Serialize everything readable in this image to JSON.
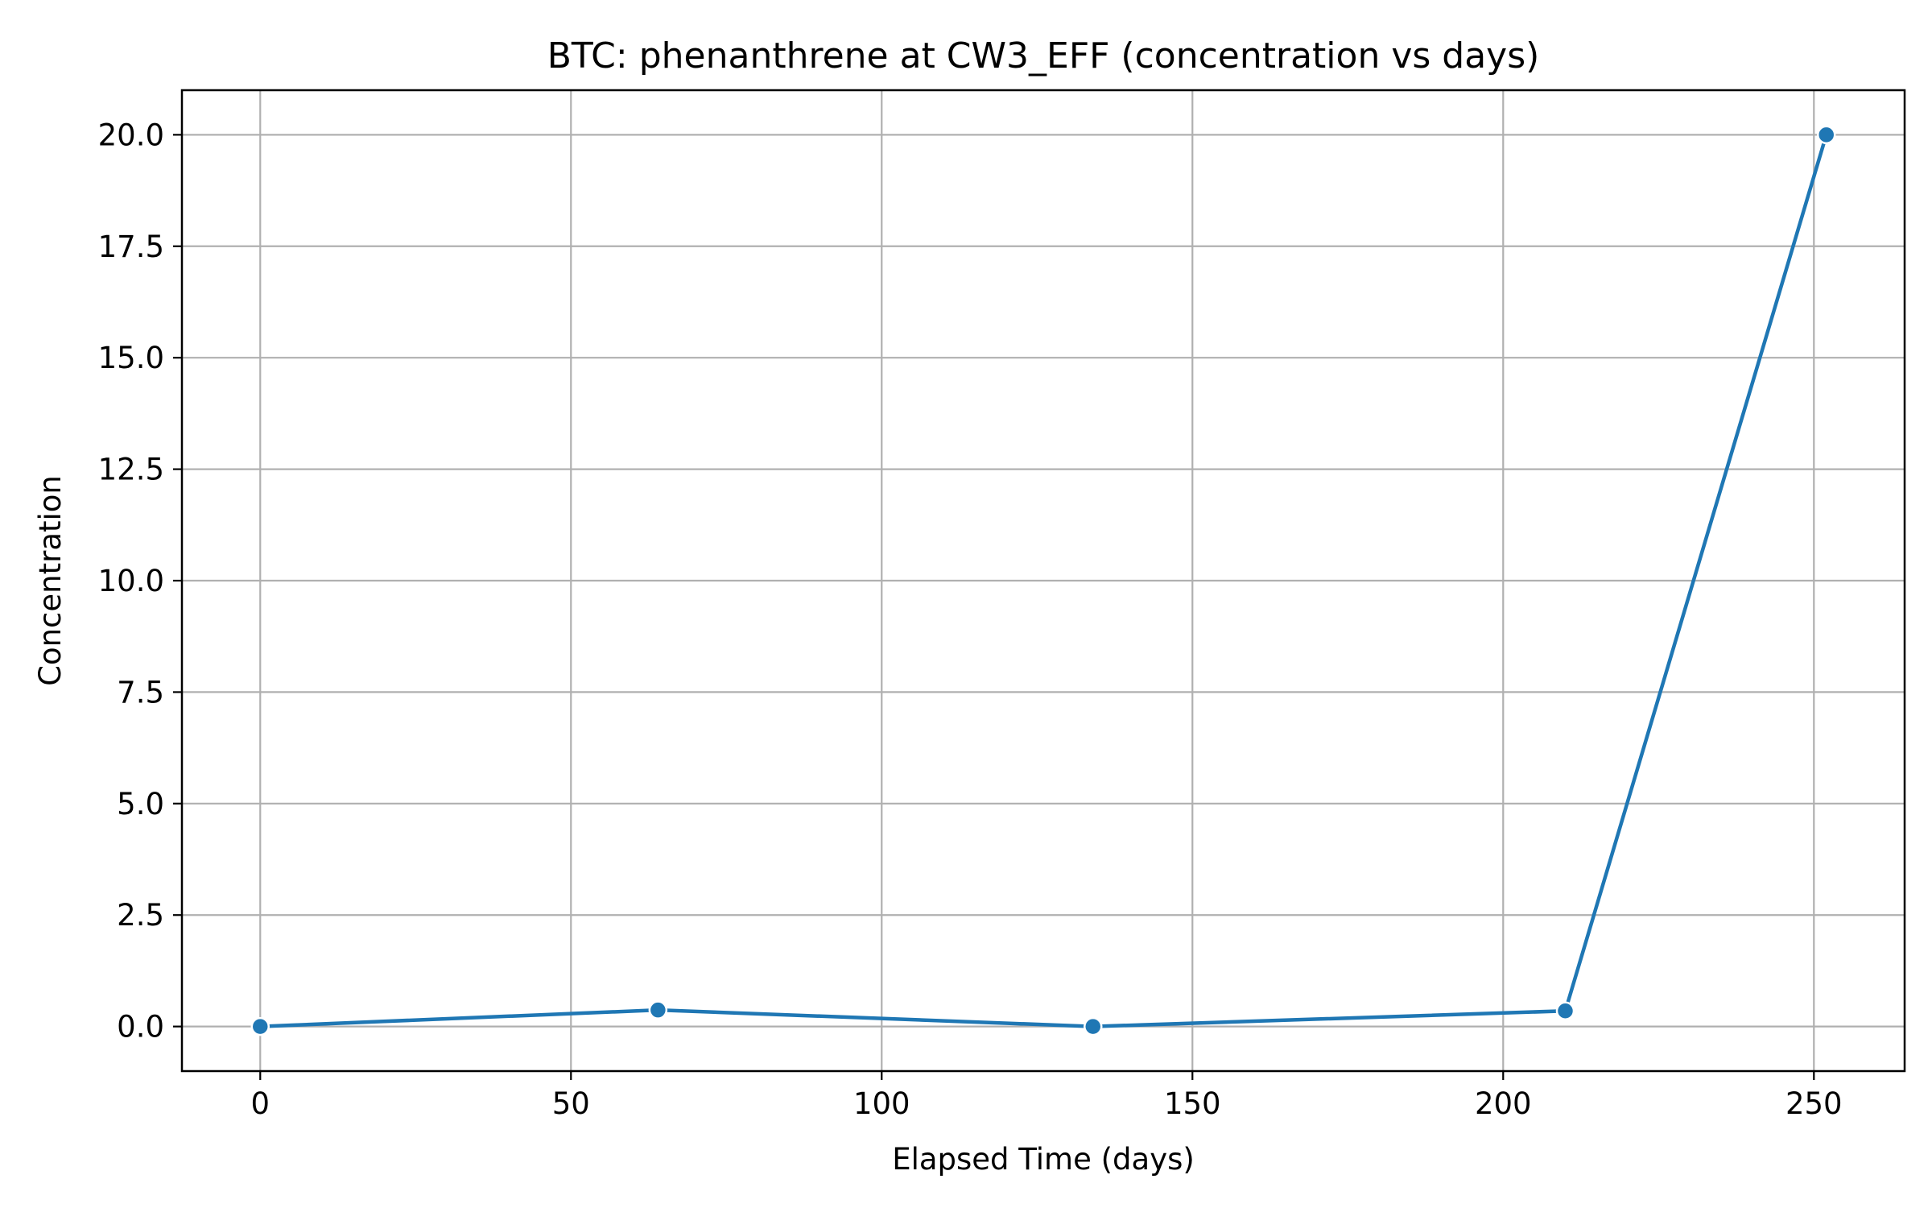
{
  "chart_data": {
    "type": "line",
    "title": "BTC: phenanthrene at CW3_EFF (concentration vs days)",
    "xlabel": "Elapsed Time (days)",
    "ylabel": "Concentration",
    "xlim": [
      -12.6,
      264.6
    ],
    "ylim": [
      -1.0,
      21.0
    ],
    "xticks": [
      0,
      50,
      100,
      150,
      200,
      250
    ],
    "xtick_labels": [
      "0",
      "50",
      "100",
      "150",
      "200",
      "250"
    ],
    "yticks": [
      0,
      2.5,
      5,
      7.5,
      10,
      12.5,
      15,
      17.5,
      20
    ],
    "ytick_labels": [
      "0.0",
      "2.5",
      "5.0",
      "7.5",
      "10.0",
      "12.5",
      "15.0",
      "17.5",
      "20.0"
    ],
    "grid": true,
    "series": [
      {
        "color": "#1f77b4",
        "marker": "circle",
        "points": [
          {
            "x": 0,
            "y": 0.0
          },
          {
            "x": 64,
            "y": 0.37
          },
          {
            "x": 134,
            "y": 0.0
          },
          {
            "x": 210,
            "y": 0.35
          },
          {
            "x": 252,
            "y": 20.0
          }
        ]
      }
    ]
  }
}
